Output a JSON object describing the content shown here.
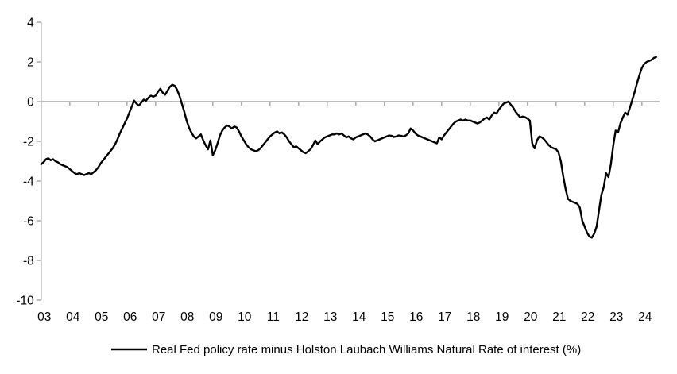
{
  "chart_data": {
    "type": "line",
    "title": "",
    "xlabel": "",
    "ylabel": "",
    "x_tick_labels": [
      "03",
      "04",
      "05",
      "06",
      "07",
      "08",
      "09",
      "10",
      "11",
      "12",
      "13",
      "14",
      "15",
      "16",
      "17",
      "18",
      "19",
      "20",
      "21",
      "22",
      "23",
      "24"
    ],
    "y_ticks": [
      4,
      2,
      0,
      -2,
      -4,
      -6,
      -8,
      -10
    ],
    "ylim": [
      -10,
      4
    ],
    "xlim_years": [
      2003.0,
      2024.6
    ],
    "grid": "zero-line-only",
    "legend_position": "bottom-center",
    "colors": {
      "line": "#000000",
      "axis": "#a6a6a6",
      "text": "#000000",
      "background": "#ffffff"
    },
    "series": [
      {
        "name": "Real Fed policy rate minus Holston Laubach Williams Natural Rate of interest (%)",
        "frequency": "monthly",
        "start_year": 2003,
        "start_month": 1,
        "values": [
          -3.15,
          -3.05,
          -2.9,
          -2.85,
          -2.95,
          -2.9,
          -3.0,
          -3.05,
          -3.15,
          -3.2,
          -3.25,
          -3.3,
          -3.4,
          -3.5,
          -3.6,
          -3.65,
          -3.6,
          -3.65,
          -3.7,
          -3.65,
          -3.6,
          -3.65,
          -3.55,
          -3.45,
          -3.3,
          -3.1,
          -2.95,
          -2.8,
          -2.65,
          -2.5,
          -2.35,
          -2.15,
          -1.9,
          -1.6,
          -1.35,
          -1.1,
          -0.85,
          -0.55,
          -0.25,
          0.05,
          -0.1,
          -0.2,
          -0.05,
          0.1,
          0.05,
          0.2,
          0.3,
          0.25,
          0.3,
          0.5,
          0.65,
          0.45,
          0.35,
          0.55,
          0.75,
          0.85,
          0.8,
          0.6,
          0.3,
          -0.1,
          -0.5,
          -0.95,
          -1.3,
          -1.55,
          -1.75,
          -1.85,
          -1.75,
          -1.65,
          -1.95,
          -2.2,
          -2.4,
          -1.95,
          -2.7,
          -2.45,
          -2.1,
          -1.7,
          -1.45,
          -1.3,
          -1.2,
          -1.25,
          -1.35,
          -1.25,
          -1.3,
          -1.5,
          -1.75,
          -1.95,
          -2.15,
          -2.3,
          -2.4,
          -2.45,
          -2.5,
          -2.45,
          -2.35,
          -2.2,
          -2.05,
          -1.9,
          -1.75,
          -1.65,
          -1.55,
          -1.5,
          -1.6,
          -1.55,
          -1.65,
          -1.8,
          -2.0,
          -2.15,
          -2.3,
          -2.25,
          -2.35,
          -2.45,
          -2.55,
          -2.6,
          -2.5,
          -2.4,
          -2.2,
          -1.95,
          -2.15,
          -2.0,
          -1.9,
          -1.8,
          -1.75,
          -1.7,
          -1.65,
          -1.65,
          -1.6,
          -1.65,
          -1.6,
          -1.7,
          -1.8,
          -1.75,
          -1.85,
          -1.9,
          -1.8,
          -1.75,
          -1.7,
          -1.65,
          -1.6,
          -1.65,
          -1.75,
          -1.9,
          -2.0,
          -1.95,
          -1.9,
          -1.85,
          -1.8,
          -1.75,
          -1.7,
          -1.72,
          -1.78,
          -1.75,
          -1.7,
          -1.72,
          -1.75,
          -1.7,
          -1.6,
          -1.35,
          -1.45,
          -1.6,
          -1.7,
          -1.75,
          -1.8,
          -1.85,
          -1.9,
          -1.95,
          -2.0,
          -2.05,
          -2.1,
          -1.8,
          -1.9,
          -1.7,
          -1.55,
          -1.4,
          -1.25,
          -1.1,
          -1.0,
          -0.95,
          -0.9,
          -0.95,
          -0.9,
          -0.95,
          -0.95,
          -1.0,
          -1.05,
          -1.1,
          -1.05,
          -0.95,
          -0.85,
          -0.8,
          -0.9,
          -0.7,
          -0.55,
          -0.6,
          -0.4,
          -0.25,
          -0.1,
          -0.05,
          0.0,
          -0.15,
          -0.3,
          -0.5,
          -0.65,
          -0.8,
          -0.75,
          -0.78,
          -0.85,
          -0.95,
          -2.1,
          -2.35,
          -1.95,
          -1.75,
          -1.8,
          -1.9,
          -2.05,
          -2.2,
          -2.3,
          -2.35,
          -2.4,
          -2.55,
          -3.0,
          -3.75,
          -4.4,
          -4.9,
          -5.0,
          -5.05,
          -5.1,
          -5.15,
          -5.35,
          -6.0,
          -6.3,
          -6.6,
          -6.8,
          -6.85,
          -6.65,
          -6.3,
          -5.5,
          -4.7,
          -4.3,
          -3.6,
          -3.8,
          -3.15,
          -2.2,
          -1.45,
          -1.55,
          -1.1,
          -0.8,
          -0.55,
          -0.65,
          -0.3,
          0.1,
          0.5,
          0.95,
          1.35,
          1.7,
          1.9,
          2.0,
          2.05,
          2.1,
          2.2,
          2.25
        ]
      }
    ]
  },
  "legend": {
    "label": "Real Fed policy rate minus Holston Laubach Williams Natural Rate of interest (%)"
  }
}
